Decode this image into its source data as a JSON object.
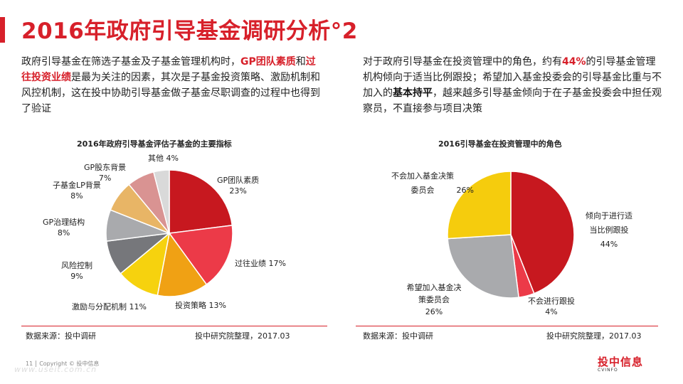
{
  "title": "2016年政府引导基金调研分析°2",
  "left_text": {
    "p1": "政府引导基金在筛选子基金及子基金管理机构时，",
    "h1": "GP团队素质",
    "p2": "和",
    "h2": "过往投资业绩",
    "p3": "是最为关注的因素，其次是子基金投资策略、激励机制和风控机制，这在投中协助引导基金做子基金尽职调查的过程中也得到了验证"
  },
  "right_text": {
    "p1": "对于政府引导基金在投资管理中的角色，约有",
    "h1": "44%",
    "p2": "的引导基金管理机构倾向于适当比例跟投；希望加入基金投委会的引导基金比重与不加入的",
    "h2": "基本持平",
    "p3": "，越来越多引导基金倾向于在子基金投委会中担任观察员，不直接参与项目决策"
  },
  "chart_data": [
    {
      "type": "pie",
      "title": "2016年政府引导基金评估子基金的主要指标",
      "labels": [
        "GP团队素质",
        "过往业绩",
        "投资策略",
        "激励与分配机制",
        "风险控制",
        "GP治理结构",
        "子基金LP背景",
        "GP股东背景",
        "其他"
      ],
      "values": [
        23,
        17,
        13,
        11,
        9,
        8,
        8,
        7,
        4
      ],
      "value_labels": [
        "23%",
        "17%",
        "13%",
        "11%",
        "9%",
        "8%",
        "8%",
        "7%",
        "4%"
      ],
      "colors": [
        "#c7181f",
        "#ec3a48",
        "#f0a114",
        "#f6d20e",
        "#76777b",
        "#a9aaad",
        "#e8b566",
        "#d99392",
        "#d9d9d9"
      ],
      "source": "数据来源：投中调研",
      "credit": "投中研究院整理，2017.03"
    },
    {
      "type": "pie",
      "title": "2016引导基金在投资管理中的角色",
      "labels": [
        "倾向于进行适当比例跟投",
        "不会进行跟投",
        "希望加入基金决策委员会",
        "不会加入基金决策委员会"
      ],
      "values": [
        44,
        4,
        26,
        26
      ],
      "value_labels": [
        "44%",
        "4%",
        "26%",
        "26%"
      ],
      "colors": [
        "#c7181f",
        "#ec3a48",
        "#a9aaad",
        "#f5cc0d"
      ],
      "source": "数据来源：投中调研",
      "credit": "投中研究院整理，2017.03"
    }
  ],
  "footer": {
    "page": "11",
    "copyright": "Copyright © 投中信息"
  },
  "watermark": "www.useit.com.cn",
  "logo": {
    "name": "投中信息",
    "sub": "CVINFO"
  }
}
